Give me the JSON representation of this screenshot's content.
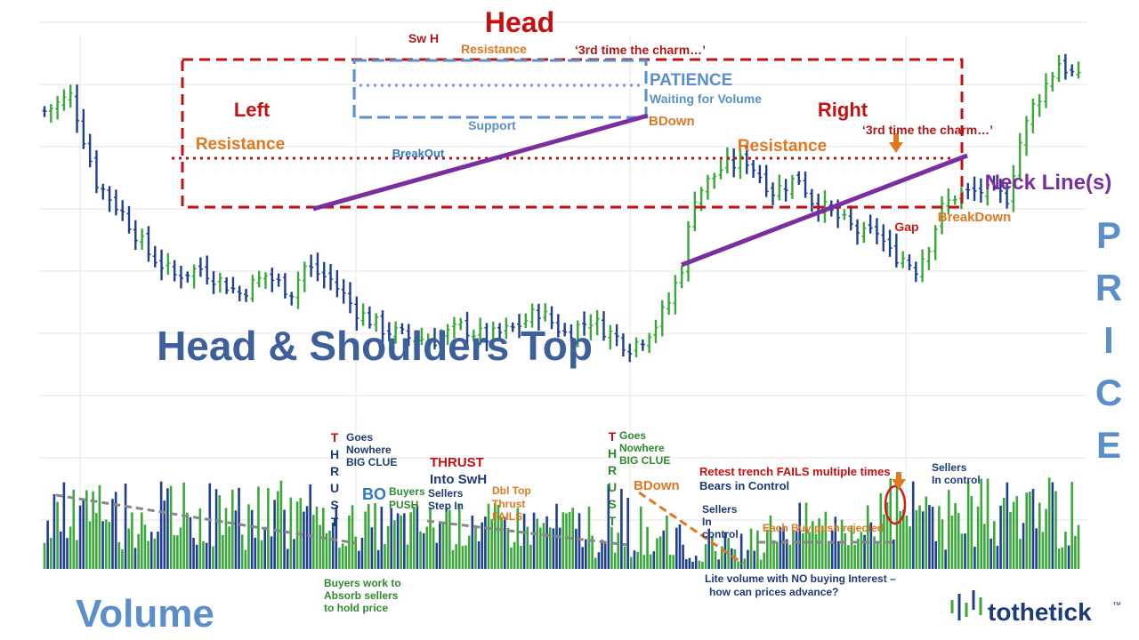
{
  "colors": {
    "up": "#3aa83a",
    "down": "#1f3f8f",
    "neckline": "#7a2ea0",
    "red_box": "#c41010",
    "blue_box": "#5b8fc9",
    "orange": "#e07820",
    "title_blue": "#3d5f9a",
    "grid": "#e6e6e6",
    "dark_red": "#b01818",
    "mid_blue": "#2f78c4",
    "green_text": "#2e8a2e",
    "navy_text": "#1e3a78",
    "volume_trend": "#888888"
  },
  "labels": {
    "main_title": "Head & Shoulders Top",
    "head": "Head",
    "left": "Left",
    "right": "Right",
    "sw_h": "Sw H",
    "resistance_top": "Resistance",
    "charm_1": "‘3rd time the charm…’",
    "charm_2": "‘3rd time the charm…’",
    "patience": "PATIENCE",
    "waiting": "Waiting for Volume",
    "support": "Support",
    "bdown_price": "BDown",
    "resistance_left": "Resistance",
    "resistance_right": "Resistance",
    "breakout": "BreakOut",
    "neck_lines": "Neck Line(s)",
    "breakdown": "BreakDown",
    "gap": "Gap",
    "price_letters": [
      "P",
      "R",
      "I",
      "C",
      "E"
    ],
    "volume": "Volume",
    "thrust_letters": [
      "T",
      "H",
      "R",
      "U",
      "S",
      "T"
    ],
    "goes_nowhere_1": [
      "Goes",
      "Nowhere",
      "BIG CLUE"
    ],
    "goes_nowhere_2": [
      "Goes",
      "Nowhere",
      "BIG CLUE"
    ],
    "bo": "BO",
    "buyers_push": [
      "Buyers",
      "PUSH"
    ],
    "thrust_swh": [
      "THRUST",
      "Into SwH"
    ],
    "sellers_step_in": [
      "Sellers",
      "Step In"
    ],
    "dbl_top": [
      "Dbl Top",
      "Thrust",
      "FAILS"
    ],
    "bdown_vol": "BDown",
    "sellers_in_control_1": [
      "Sellers",
      "In",
      "control"
    ],
    "retest": [
      "Retest trench FAILS multiple times",
      "Bears in Control"
    ],
    "sellers_in_control_2": [
      "Sellers",
      "In control"
    ],
    "each_buy_push": "Each Buy push rejected",
    "buyers_absorb": [
      "Buyers work to",
      "Absorb sellers",
      "to hold price"
    ],
    "lite_volume": [
      "Lite volume with NO buying Interest –",
      "how can prices advance?"
    ],
    "logo": "tothetick",
    "logo_tm": "™"
  },
  "chart_data": [
    {
      "type": "bar",
      "subtype": "ohlc-price",
      "title": "Head & Shoulders Top",
      "ylabel": "PRICE",
      "xlabel": "",
      "grid": true,
      "bar_count": 160,
      "close_path_knots": [
        [
          0,
          335
        ],
        [
          4,
          352
        ],
        [
          5,
          330
        ],
        [
          8,
          255
        ],
        [
          12,
          220
        ],
        [
          16,
          175
        ],
        [
          20,
          150
        ],
        [
          24,
          158
        ],
        [
          30,
          130
        ],
        [
          34,
          150
        ],
        [
          38,
          132
        ],
        [
          40,
          160
        ],
        [
          44,
          145
        ],
        [
          48,
          110
        ],
        [
          52,
          90
        ],
        [
          56,
          80
        ],
        [
          60,
          78
        ],
        [
          64,
          92
        ],
        [
          68,
          80
        ],
        [
          72,
          90
        ],
        [
          76,
          110
        ],
        [
          80,
          85
        ],
        [
          84,
          100
        ],
        [
          88,
          80
        ],
        [
          90,
          70
        ],
        [
          92,
          80
        ],
        [
          94,
          95
        ],
        [
          96,
          120
        ],
        [
          98,
          160
        ],
        [
          100,
          240
        ],
        [
          104,
          270
        ],
        [
          108,
          280
        ],
        [
          112,
          245
        ],
        [
          116,
          260
        ],
        [
          118,
          235
        ],
        [
          122,
          215
        ],
        [
          126,
          195
        ],
        [
          128,
          200
        ],
        [
          130,
          175
        ],
        [
          132,
          170
        ],
        [
          134,
          158
        ],
        [
          136,
          185
        ],
        [
          138,
          225
        ],
        [
          140,
          240
        ],
        [
          144,
          245
        ],
        [
          148,
          238
        ],
        [
          150,
          300
        ],
        [
          152,
          340
        ],
        [
          156,
          390
        ],
        [
          159,
          370
        ]
      ]
    },
    {
      "type": "bar",
      "subtype": "volume",
      "ylabel": "Volume",
      "xlabel": "",
      "bar_count": 160
    }
  ]
}
